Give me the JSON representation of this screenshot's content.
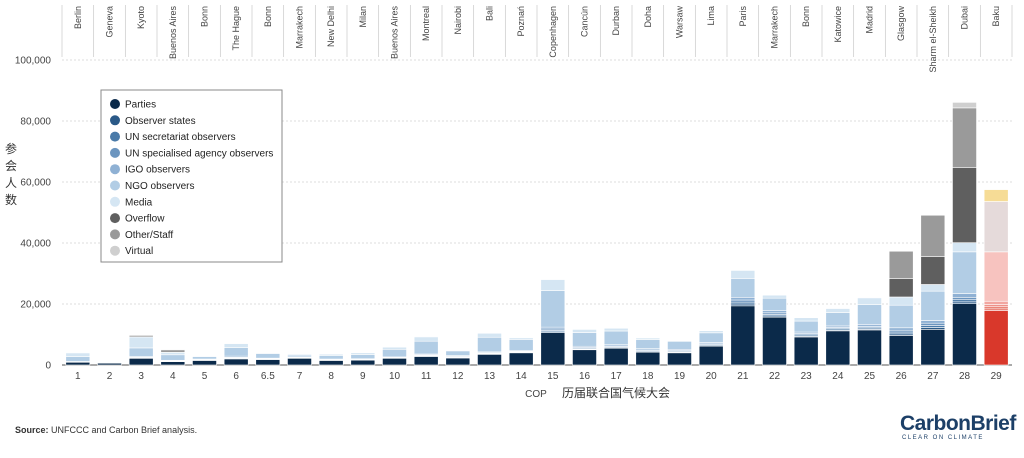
{
  "chart_data": {
    "type": "bar",
    "stacked": true,
    "ylabel": "参会人数",
    "xlabel_prefix": "COP",
    "xlabel": "历届联合国气候大会",
    "ylim": [
      0,
      100000
    ],
    "yticks": [
      0,
      20000,
      40000,
      60000,
      80000,
      100000
    ],
    "ytick_labels": [
      "0",
      "20,000",
      "40,000",
      "60,000",
      "80,000",
      "100,000"
    ],
    "grid": true,
    "legend_position": "top-left",
    "categories": [
      "1",
      "2",
      "3",
      "4",
      "5",
      "6",
      "6.5",
      "7",
      "8",
      "9",
      "10",
      "11",
      "12",
      "13",
      "14",
      "15",
      "16",
      "17",
      "18",
      "19",
      "20",
      "21",
      "22",
      "23",
      "24",
      "25",
      "26",
      "27",
      "28",
      "29"
    ],
    "cities": [
      "Berlin",
      "Geneva",
      "Kyoto",
      "Buenos Aires",
      "Bonn",
      "The Hague",
      "Bonn",
      "Marrakech",
      "New Delhi",
      "Milan",
      "Buenos Aires",
      "Montreal",
      "Nairobi",
      "Bali",
      "Poznań",
      "Copenhagen",
      "Cancún",
      "Durban",
      "Doha",
      "Warsaw",
      "Lima",
      "Paris",
      "Marrakech",
      "Bonn",
      "Katowice",
      "Madrid",
      "Glasgow",
      "Sharm el-Sheikh",
      "Dubai",
      "Baku"
    ],
    "series": [
      {
        "name": "Parties",
        "color": "#0b2a4a",
        "color_highlight": "#d9382b",
        "values": [
          900,
          600,
          2200,
          1100,
          1500,
          2000,
          1800,
          2200,
          1500,
          1600,
          2200,
          2800,
          2300,
          3500,
          4000,
          10600,
          5000,
          5500,
          4200,
          4000,
          6200,
          19400,
          15700,
          9200,
          11200,
          11500,
          9700,
          11700,
          20100,
          17900
        ]
      },
      {
        "name": "Observer states",
        "color": "#2a5987",
        "color_highlight": "#e05a4c",
        "values": [
          50,
          50,
          100,
          50,
          50,
          100,
          50,
          50,
          50,
          50,
          50,
          100,
          100,
          100,
          100,
          300,
          150,
          150,
          150,
          150,
          150,
          600,
          400,
          300,
          300,
          300,
          500,
          600,
          600,
          500
        ]
      },
      {
        "name": "UN secretariat observers",
        "color": "#4a7aa8",
        "color_highlight": "#e8786c",
        "values": [
          50,
          50,
          100,
          100,
          100,
          200,
          100,
          100,
          100,
          100,
          100,
          200,
          200,
          200,
          200,
          400,
          300,
          300,
          300,
          300,
          300,
          600,
          500,
          400,
          400,
          400,
          600,
          700,
          700,
          700
        ]
      },
      {
        "name": "UN specialised agency observers",
        "color": "#6b95bf",
        "color_highlight": "#ee9088",
        "values": [
          50,
          50,
          100,
          100,
          100,
          200,
          100,
          100,
          100,
          100,
          100,
          200,
          200,
          200,
          200,
          500,
          300,
          300,
          300,
          300,
          300,
          700,
          500,
          400,
          400,
          400,
          600,
          700,
          800,
          700
        ]
      },
      {
        "name": "IGO observers",
        "color": "#8fb1d4",
        "color_highlight": "#f2a6a0",
        "values": [
          100,
          100,
          300,
          200,
          200,
          400,
          200,
          200,
          200,
          200,
          200,
          300,
          300,
          300,
          300,
          600,
          400,
          400,
          400,
          400,
          400,
          900,
          700,
          500,
          500,
          600,
          800,
          900,
          1200,
          1100
        ]
      },
      {
        "name": "NGO observers",
        "color": "#b2cde5",
        "color_highlight": "#f7c3bf",
        "values": [
          1600,
          200,
          2800,
          1800,
          800,
          2800,
          1500,
          600,
          1200,
          1400,
          2500,
          4200,
          1500,
          4800,
          3600,
          12000,
          4500,
          4500,
          3000,
          2600,
          3200,
          6200,
          4100,
          3600,
          4400,
          6600,
          7400,
          9600,
          13700,
          16200
        ]
      },
      {
        "name": "Media",
        "color": "#d5e6f3",
        "color_highlight": "#f8dada",
        "values": [
          1200,
          0,
          3600,
          800,
          0,
          1300,
          0,
          300,
          400,
          550,
          700,
          1400,
          0,
          1300,
          500,
          3600,
          1000,
          900,
          500,
          0,
          700,
          2600,
          1000,
          1100,
          1300,
          2200,
          2700,
          2200,
          3000,
          0
        ]
      },
      {
        "name": "Overflow",
        "color": "#5f5f5f",
        "color_highlight": "#c9c9c9",
        "values": [
          0,
          0,
          0,
          0,
          0,
          0,
          0,
          0,
          0,
          0,
          0,
          0,
          0,
          0,
          0,
          0,
          0,
          0,
          0,
          0,
          0,
          0,
          0,
          0,
          0,
          0,
          6000,
          9200,
          24700,
          0
        ]
      },
      {
        "name": "Other/Staff",
        "color": "#9a9a9a",
        "color_highlight": "#e5dada",
        "values": [
          0,
          0,
          500,
          800,
          0,
          0,
          0,
          0,
          0,
          0,
          0,
          0,
          0,
          0,
          0,
          0,
          0,
          0,
          0,
          0,
          0,
          0,
          0,
          0,
          0,
          0,
          9000,
          13500,
          19500,
          16500
        ]
      },
      {
        "name": "Virtual",
        "color": "#cfcfcf",
        "color_highlight": "#f6dc96",
        "values": [
          0,
          0,
          0,
          0,
          0,
          0,
          0,
          0,
          0,
          0,
          0,
          0,
          0,
          0,
          0,
          0,
          0,
          0,
          0,
          0,
          0,
          0,
          0,
          0,
          0,
          0,
          0,
          0,
          1800,
          3900
        ]
      }
    ],
    "highlight_category": "29"
  },
  "source": {
    "label": "Source:",
    "text": " UNFCCC and Carbon Brief analysis."
  },
  "brand": {
    "name": "CarbonBrief",
    "tagline": "CLEAR ON CLIMATE"
  }
}
